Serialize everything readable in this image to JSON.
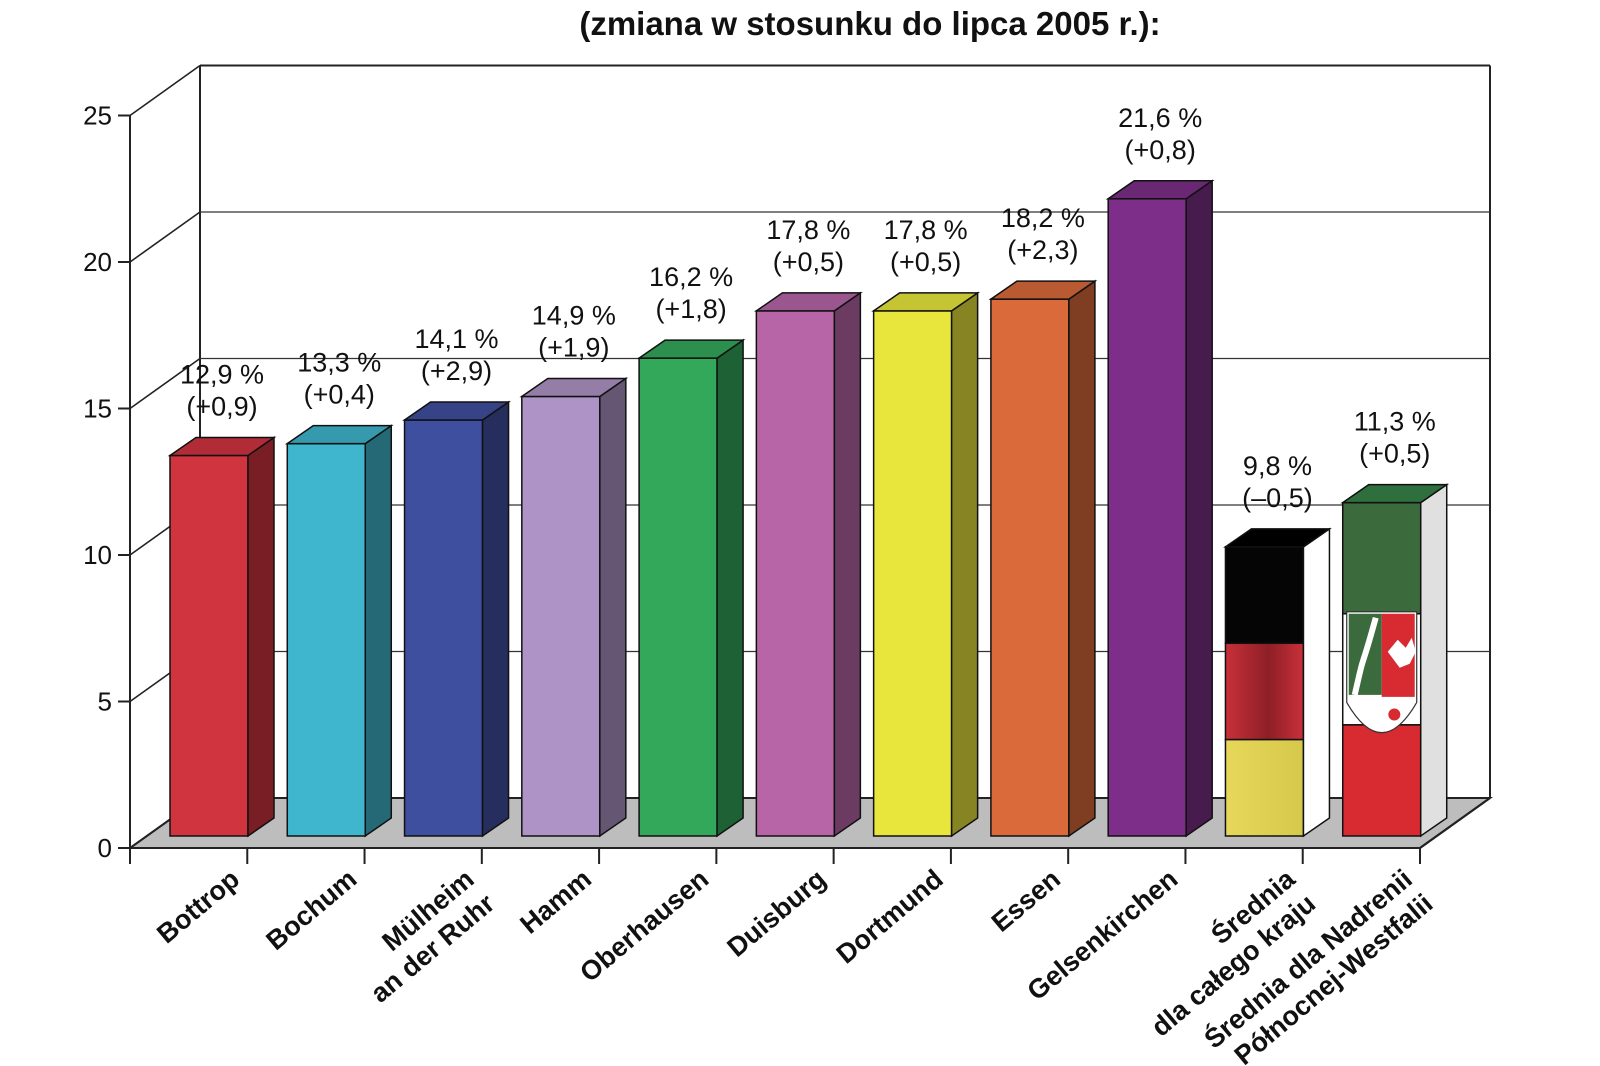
{
  "chart_data": {
    "type": "bar",
    "title": "(zmiana w stosunku do lipca 2005 r.):",
    "xlabel": "",
    "ylabel": "",
    "ylim": [
      0,
      25
    ],
    "yticks": [
      0,
      5,
      10,
      15,
      20,
      25
    ],
    "grid": true,
    "categories": [
      {
        "lines": [
          "Bottrop"
        ],
        "value": 12.9,
        "label": "12,9 %",
        "change": "(+0,9)",
        "color": "#d0343f"
      },
      {
        "lines": [
          "Bochum"
        ],
        "value": 13.3,
        "label": "13,3 %",
        "change": "(+0,4)",
        "color": "#40b5ce"
      },
      {
        "lines": [
          "Mülheim",
          "an der Ruhr"
        ],
        "value": 14.1,
        "label": "14,1 %",
        "change": "(+2,9)",
        "color": "#3f4f9f"
      },
      {
        "lines": [
          "Hamm"
        ],
        "value": 14.9,
        "label": "14,9 %",
        "change": "(+1,9)",
        "color": "#ae94c6"
      },
      {
        "lines": [
          "Oberhausen"
        ],
        "value": 16.2,
        "label": "16,2 %",
        "change": "(+1,8)",
        "color": "#34a85a"
      },
      {
        "lines": [
          "Duisburg"
        ],
        "value": 17.8,
        "label": "17,8 %",
        "change": "(+0,5)",
        "color": "#b865a8"
      },
      {
        "lines": [
          "Dortmund"
        ],
        "value": 17.8,
        "label": "17,8 %",
        "change": "(+0,5)",
        "color": "#e8e63c"
      },
      {
        "lines": [
          "Essen"
        ],
        "value": 18.2,
        "label": "18,2 %",
        "change": "(+2,3)",
        "color": "#db6a3b"
      },
      {
        "lines": [
          "Gelsenkirchen"
        ],
        "value": 21.6,
        "label": "21,6 %",
        "change": "(+0,8)",
        "color": "#7c2e88"
      },
      {
        "lines": [
          "Średnia",
          "dla całego kraju"
        ],
        "value": 9.8,
        "label": "9,8 %",
        "change": "(–0,5)",
        "color": "flag-de"
      },
      {
        "lines": [
          "Średnia dla Nadrenii",
          "Północnej-Westfalii"
        ],
        "value": 11.3,
        "label": "11,3 %",
        "change": "(+0,5)",
        "color": "flag-nrw"
      }
    ]
  }
}
